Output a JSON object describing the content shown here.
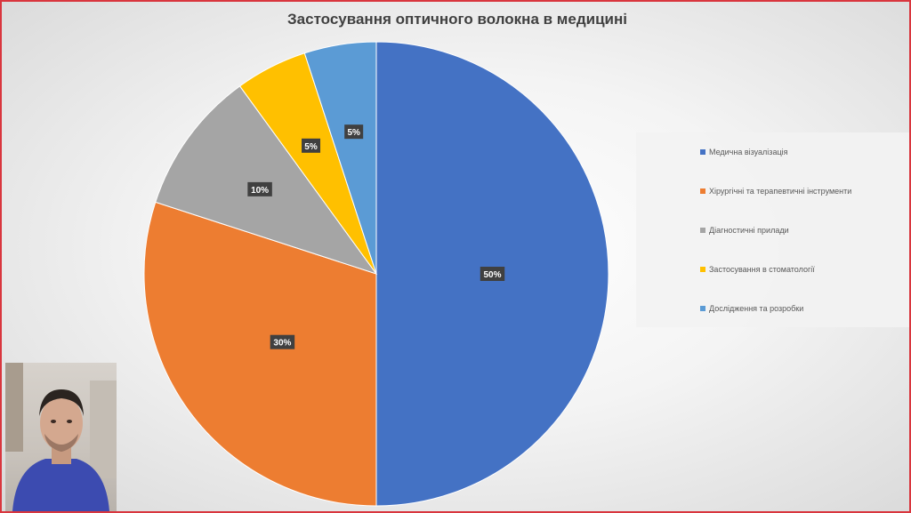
{
  "slide": {
    "title": "Застосування оптичного волокна в медицині"
  },
  "chart_data": {
    "type": "pie",
    "title": "Застосування оптичного волокна в медицині",
    "categories": [
      "Медична візуалізація",
      "Хірургічні та терапевтичні інструменти",
      "Діагностичні прилади",
      "Застосування в стоматології",
      "Дослідження та розробки"
    ],
    "values": [
      50,
      30,
      10,
      5,
      5
    ],
    "data_labels": [
      "50%",
      "30%",
      "10%",
      "5%",
      "5%"
    ],
    "colors": [
      "#4472C4",
      "#ED7D31",
      "#A5A5A5",
      "#FFC000",
      "#5B9BD5"
    ],
    "legend_position": "right"
  },
  "legend": {
    "items": [
      "Медична візуалізація",
      "Хірургічні та терапевтичні інструменти",
      "Діагностичні прилади",
      "Застосування в стоматології",
      "Дослідження та розробки"
    ]
  },
  "webcam": {
    "icon": "presenter-webcam-image"
  }
}
